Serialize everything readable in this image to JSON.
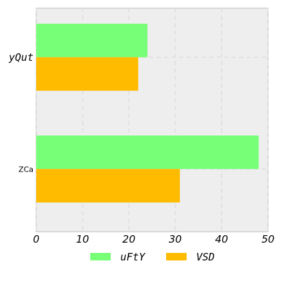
{
  "chart_data": {
    "type": "bar",
    "orientation": "horizontal",
    "categories": [
      "yQut",
      "ZCa"
    ],
    "series": [
      {
        "name": "uFtY",
        "color": "#77ff77",
        "values": [
          24,
          48
        ]
      },
      {
        "name": "VSD",
        "color": "#ffbb00",
        "values": [
          22,
          31
        ]
      }
    ],
    "xlim": [
      0,
      50
    ],
    "xticks": [
      "0",
      "10",
      "20",
      "30",
      "40",
      "50"
    ],
    "grid": true,
    "legend_position": "bottom-center",
    "background": "#eeeeee"
  }
}
